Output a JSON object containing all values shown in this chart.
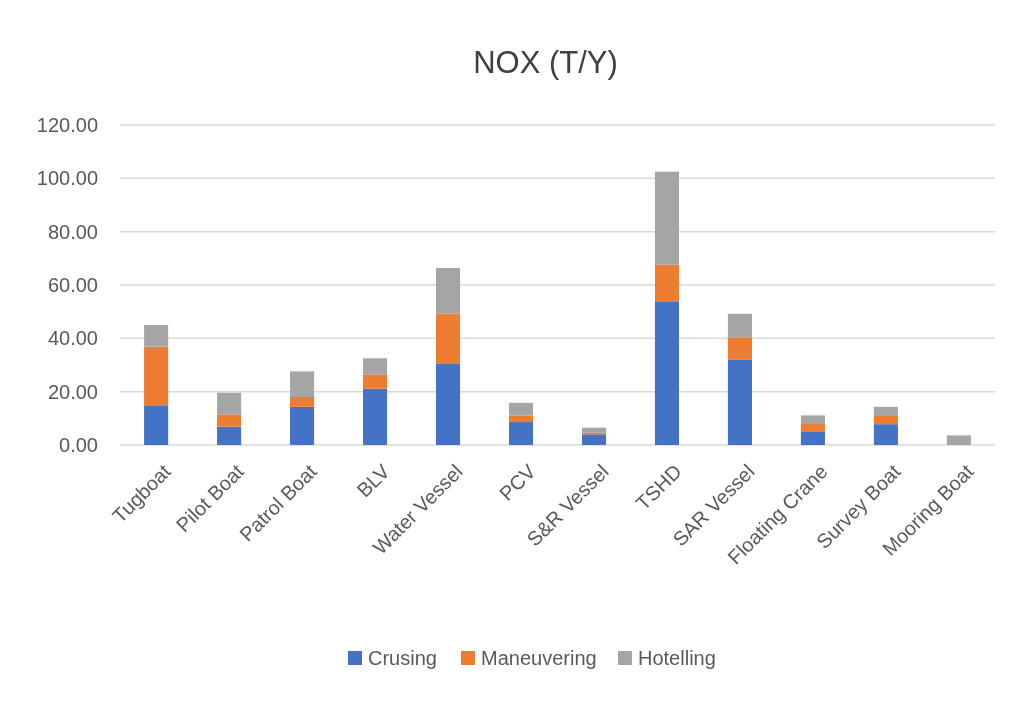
{
  "chart_data": {
    "type": "bar",
    "title": "NOX (T/Y)",
    "stacked": true,
    "categories": [
      "Tugboat",
      "Pilot Boat",
      "Patrol Boat",
      "BLV",
      "Water Vessel",
      "PCV",
      "S&R Vessel",
      "TSHD",
      "SAR Vessel",
      "Floating Crane",
      "Survey Boat",
      "Mooring Boat"
    ],
    "series": [
      {
        "name": "Crusing",
        "color": "#4472c4",
        "values": [
          14.9,
          6.9,
          14.3,
          21.1,
          30.4,
          8.6,
          4.0,
          53.9,
          32.1,
          4.9,
          7.8,
          0
        ]
      },
      {
        "name": "Maneuvering",
        "color": "#ed7d31",
        "values": [
          22.0,
          4.6,
          3.7,
          5.4,
          18.9,
          2.4,
          0.6,
          13.7,
          8.1,
          3.0,
          3.4,
          0
        ]
      },
      {
        "name": "Hotelling",
        "color": "#a5a5a5",
        "values": [
          8.1,
          8.1,
          9.6,
          6.0,
          17.1,
          4.8,
          1.9,
          34.9,
          9.0,
          3.2,
          3.1,
          3.6
        ]
      }
    ],
    "ylim": [
      0,
      120
    ],
    "yticks": [
      {
        "value": 0,
        "label": "0.00"
      },
      {
        "value": 20,
        "label": "20.00"
      },
      {
        "value": 40,
        "label": "40.00"
      },
      {
        "value": 60,
        "label": "60.00"
      },
      {
        "value": 80,
        "label": "80.00"
      },
      {
        "value": 100,
        "label": "100.00"
      },
      {
        "value": 120,
        "label": "120.00"
      }
    ],
    "grid": "y",
    "legend": "bottom"
  }
}
